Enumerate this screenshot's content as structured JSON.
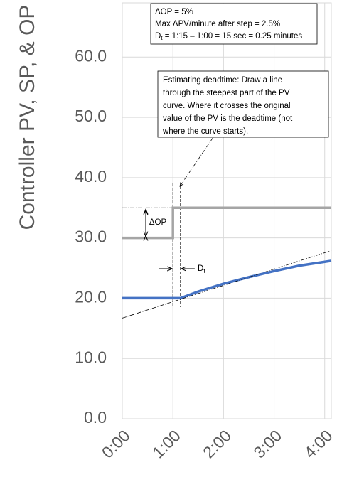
{
  "chart_data": {
    "type": "line",
    "y_axis_title": "Controller PV, SP, & OP",
    "xlim": [
      0,
      4.13
    ],
    "ylim": [
      0,
      69
    ],
    "xticks": [
      {
        "value": 0,
        "label": "0:00"
      },
      {
        "value": 1,
        "label": "1:00"
      },
      {
        "value": 2,
        "label": "2:00"
      },
      {
        "value": 3,
        "label": "3:00"
      },
      {
        "value": 4,
        "label": "4:00"
      }
    ],
    "yticks": [
      {
        "value": 0,
        "label": "0.0"
      },
      {
        "value": 10,
        "label": "10.0"
      },
      {
        "value": 20,
        "label": "20.0"
      },
      {
        "value": 30,
        "label": "30.0"
      },
      {
        "value": 40,
        "label": "40.0"
      },
      {
        "value": 50,
        "label": "50.0"
      },
      {
        "value": 60,
        "label": "60.0"
      }
    ],
    "grid": true,
    "series": [
      {
        "color": "#a5a5a5",
        "x": [
          0,
          1.0,
          1.0,
          4.13
        ],
        "values": [
          30,
          30,
          35,
          35
        ]
      },
      {
        "color": "#4472c4",
        "x": [
          0,
          1.15,
          1.5,
          2.0,
          2.5,
          3.0,
          3.5,
          4.13
        ],
        "values": [
          20,
          20,
          21.1,
          22.4,
          23.5,
          24.5,
          25.4,
          26.2
        ]
      }
    ],
    "tangent_line": {
      "x": [
        0,
        4.13
      ],
      "values": [
        16.7,
        27.9
      ]
    },
    "info_box": [
      "ΔOP = 5%",
      "Max ΔPV/minute after step = 2.5%",
      {
        "main": "D",
        "sub": "t",
        "rest": " = 1:15 – 1:00 = 15 sec = 0.25 minutes"
      }
    ],
    "deadtime_note": [
      "Estimating deadtime:  Draw a line",
      "through the steepest part of the PV",
      "curve.  Where it crosses the original",
      "value of the PV is the deadtime (not",
      "where the curve starts)."
    ],
    "delta_op_label": "ΔOP",
    "dt_label": {
      "main": "D",
      "sub": "t"
    }
  }
}
